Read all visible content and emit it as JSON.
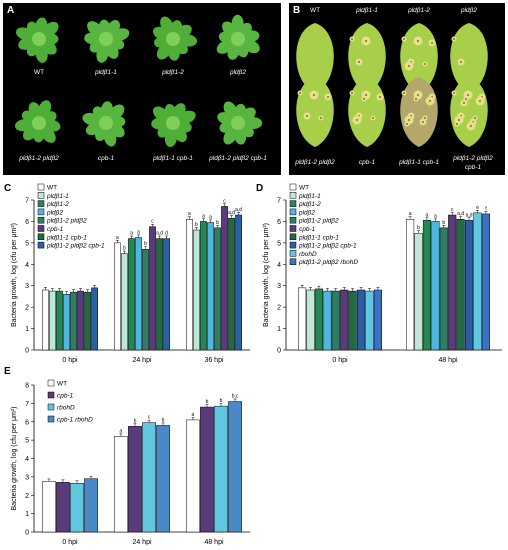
{
  "panels": {
    "A": {
      "label": "A",
      "row1": [
        "WT",
        "pldβ1-1",
        "pldβ1-2",
        "pldβ2"
      ],
      "row2": [
        "pldβ1-2 pldβ2",
        "cpb-1",
        "pldβ1-1 cpb-1",
        "pldβ1-2 pldβ2 cpb-1"
      ]
    },
    "B": {
      "label": "B",
      "row1": [
        "WT",
        "pldβ1-1",
        "pldβ1-2",
        "pldβ2"
      ],
      "row2": [
        "pldβ1-2 pldβ2",
        "cpb-1",
        "pldβ1-1 cpb-1",
        "pldβ1-2 pldβ2",
        "cpb-1"
      ]
    }
  },
  "colors": {
    "WT": "#ffffff",
    "pldb1_1": "#bfe8d6",
    "pldb1_2": "#1f8a54",
    "pldb2": "#4fb6df",
    "double": "#2f7d63",
    "cpb1": "#5a3b7c",
    "pldb1_1_cpb1": "#1e6b44",
    "triple": "#2a5fa8",
    "rbohD": "#61c7df",
    "pldb1_2_pldb2_rbohD": "#3b72c4",
    "cpb1_rbohD": "#4a88c8"
  },
  "chart_data": [
    {
      "panel": "C",
      "type": "bar",
      "ylabel": "Bacteria growth, log (cfu per μm²)",
      "ylim": [
        0,
        7
      ],
      "yticks": [
        0,
        1,
        2,
        3,
        4,
        5,
        6,
        7
      ],
      "categories": [
        "0 hpi",
        "24 hpi",
        "36 hpi"
      ],
      "series": [
        {
          "name": "WT",
          "color": "#ffffff",
          "values": [
            2.8,
            5.0,
            6.1
          ],
          "letters": [
            "",
            "a",
            "a"
          ]
        },
        {
          "name": "pldβ1-1",
          "color": "#bfe8d6",
          "values": [
            2.75,
            4.5,
            5.6
          ],
          "letters": [
            "",
            "b",
            "b"
          ]
        },
        {
          "name": "pldβ1-2",
          "color": "#1f8a54",
          "values": [
            2.75,
            5.2,
            6.0
          ],
          "letters": [
            "",
            "a",
            "a"
          ]
        },
        {
          "name": "pldβ2",
          "color": "#4fb6df",
          "values": [
            2.6,
            5.25,
            5.95
          ],
          "letters": [
            "",
            "a",
            "a"
          ]
        },
        {
          "name": "pldβ1-2 pldβ2",
          "color": "#2f7d63",
          "values": [
            2.7,
            4.7,
            5.7
          ],
          "letters": [
            "",
            "b",
            "b"
          ]
        },
        {
          "name": "cpb-1",
          "color": "#5a3b7c",
          "values": [
            2.75,
            5.75,
            6.7
          ],
          "letters": [
            "",
            "c",
            "c"
          ]
        },
        {
          "name": "pldβ1-1 cpb-1",
          "color": "#1e6b44",
          "values": [
            2.7,
            5.2,
            6.15
          ],
          "letters": [
            "",
            "a,d",
            "a,d"
          ]
        },
        {
          "name": "pldβ1-2 pldβ2 cpb-1",
          "color": "#2a5fa8",
          "values": [
            2.9,
            5.2,
            6.3
          ],
          "letters": [
            "",
            "d",
            "a,d"
          ]
        }
      ]
    },
    {
      "panel": "D",
      "type": "bar",
      "ylabel": "Bacteria growth, log (cfu per μm²)",
      "ylim": [
        0,
        7
      ],
      "yticks": [
        0,
        1,
        2,
        3,
        4,
        5,
        6,
        7
      ],
      "categories": [
        "0 hpi",
        "48 hpi"
      ],
      "series": [
        {
          "name": "WT",
          "color": "#ffffff",
          "values": [
            2.9,
            6.1
          ],
          "letters": [
            "",
            "a"
          ]
        },
        {
          "name": "pldβ1-1",
          "color": "#bfe8d6",
          "values": [
            2.8,
            5.45
          ],
          "letters": [
            "",
            "b"
          ]
        },
        {
          "name": "pldβ1-2",
          "color": "#1f8a54",
          "values": [
            2.85,
            6.05
          ],
          "letters": [
            "",
            "a"
          ]
        },
        {
          "name": "pldβ2",
          "color": "#4fb6df",
          "values": [
            2.75,
            6.0
          ],
          "letters": [
            "",
            "a"
          ]
        },
        {
          "name": "pldβ1-2 pldβ2",
          "color": "#2f7d63",
          "values": [
            2.75,
            5.7
          ],
          "letters": [
            "",
            "b"
          ]
        },
        {
          "name": "cpb-1",
          "color": "#5a3b7c",
          "values": [
            2.8,
            6.3
          ],
          "letters": [
            "",
            "c"
          ]
        },
        {
          "name": "pldβ1-1 cpb-1",
          "color": "#1e6b44",
          "values": [
            2.75,
            6.1
          ],
          "letters": [
            "",
            "a,d"
          ]
        },
        {
          "name": "pldβ1-2 pldβ2 cpb-1",
          "color": "#2a5fa8",
          "values": [
            2.8,
            6.05
          ],
          "letters": [
            "",
            "a,d"
          ]
        },
        {
          "name": "rbohD",
          "color": "#61c7df",
          "values": [
            2.75,
            6.4
          ],
          "letters": [
            "",
            "e"
          ]
        },
        {
          "name": "pldβ1-2 pldβ2 rbohD",
          "color": "#3b72c4",
          "values": [
            2.8,
            6.35
          ],
          "letters": [
            "",
            "f"
          ]
        }
      ]
    },
    {
      "panel": "E",
      "type": "bar",
      "ylabel": "Bacteria growth, log (cfu per μm²)",
      "ylim": [
        0,
        8
      ],
      "yticks": [
        0,
        1,
        2,
        3,
        4,
        5,
        6,
        7,
        8
      ],
      "categories": [
        "0 hpi",
        "24 hpi",
        "48 hpi"
      ],
      "series": [
        {
          "name": "WT",
          "color": "#ffffff",
          "values": [
            2.75,
            5.2,
            6.1
          ],
          "letters": [
            "",
            "a",
            "a"
          ]
        },
        {
          "name": "cpb-1",
          "color": "#5a3b7c",
          "values": [
            2.7,
            5.75,
            6.8
          ],
          "letters": [
            "",
            "b",
            "b"
          ]
        },
        {
          "name": "rbohD",
          "color": "#61c7df",
          "values": [
            2.65,
            5.95,
            6.85
          ],
          "letters": [
            "",
            "c",
            "b"
          ]
        },
        {
          "name": "cpb-1 rbohD",
          "color": "#4a88c8",
          "values": [
            2.9,
            5.8,
            7.1
          ],
          "letters": [
            "",
            "b",
            "b,c"
          ]
        }
      ]
    }
  ]
}
